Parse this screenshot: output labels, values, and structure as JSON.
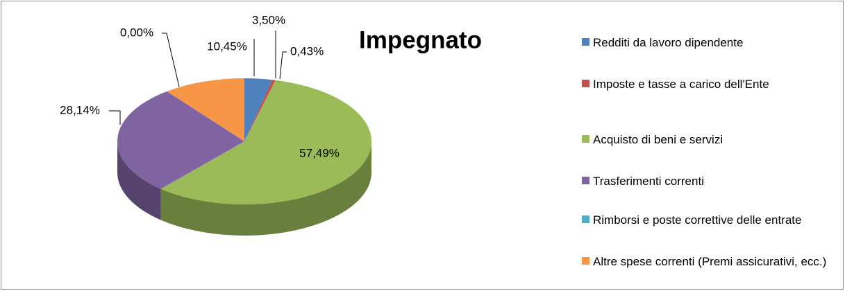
{
  "chart_data": {
    "type": "pie",
    "title": "Impegnato",
    "categories": [
      "Redditi da lavoro dipendente",
      "Imposte e tasse a carico dell'Ente",
      "Acquisto di beni e servizi",
      "Trasferimenti correnti",
      "Rimborsi e poste correttive delle entrate",
      "Altre spese correnti (Premi assicurativi, ecc.)"
    ],
    "values": [
      3.5,
      0.43,
      57.49,
      28.14,
      0,
      10.45
    ],
    "value_labels": [
      "3,50%",
      "0,43%",
      "57,49%",
      "28,14%",
      "0,00%",
      "10,45%"
    ],
    "colors": [
      "#4f81bd",
      "#c0504d",
      "#9bbb59",
      "#8064a2",
      "#4bacc6",
      "#f79646"
    ]
  }
}
